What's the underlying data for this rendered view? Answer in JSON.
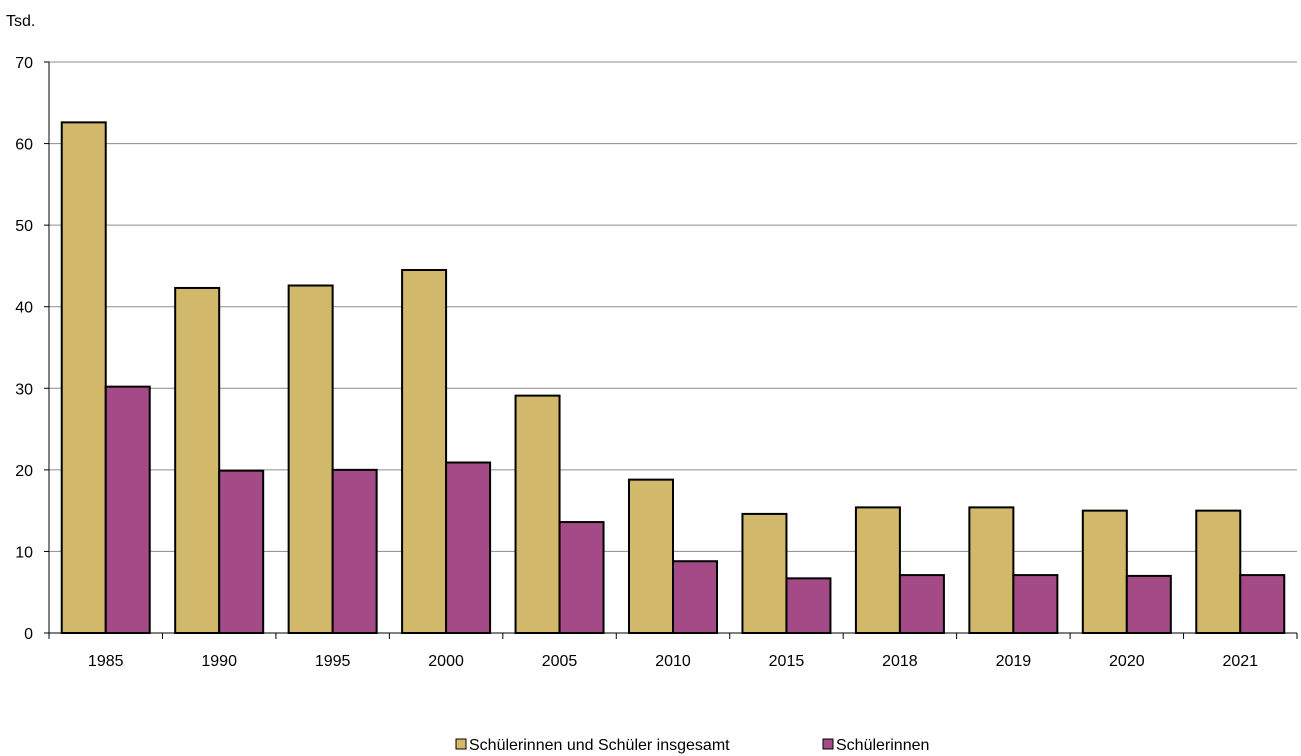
{
  "chart_data": {
    "type": "bar",
    "unit_label": "Tsd.",
    "categories": [
      "1985",
      "1990",
      "1995",
      "2000",
      "2005",
      "2010",
      "2015",
      "2018",
      "2019",
      "2020",
      "2021"
    ],
    "series": [
      {
        "name": "Schülerinnen und Schüler insgesamt",
        "color": "#d2b86a",
        "values": [
          62.6,
          42.3,
          42.6,
          44.5,
          29.1,
          18.8,
          14.6,
          15.4,
          15.4,
          15.0,
          15.0
        ]
      },
      {
        "name": "Schülerinnen",
        "color": "#a34a87",
        "values": [
          30.2,
          19.9,
          20.0,
          20.9,
          13.6,
          8.8,
          6.7,
          7.1,
          7.1,
          7.0,
          7.1
        ]
      }
    ],
    "yticks": [
      0,
      10,
      20,
      30,
      40,
      50,
      60,
      70
    ],
    "ylim": [
      0,
      70
    ],
    "grid": true,
    "legend_position": "bottom-center"
  }
}
